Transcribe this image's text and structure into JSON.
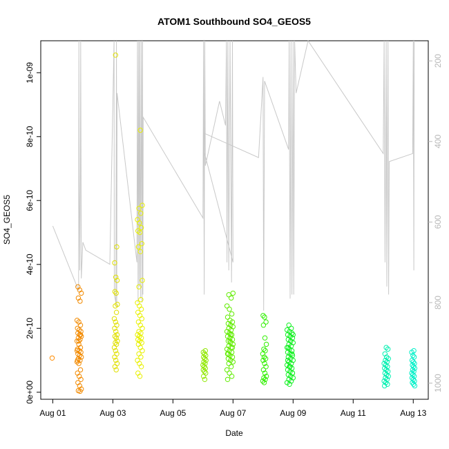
{
  "chart_data": {
    "type": "scatter",
    "title": "ATOM1 Southbound SO4_GEOS5",
    "xlabel": "Date",
    "ylabel": "SO4_GEOS5",
    "x_ticks": [
      "Aug 01",
      "Aug 03",
      "Aug 05",
      "Aug 07",
      "Aug 09",
      "Aug 11",
      "Aug 13"
    ],
    "x_tick_days": [
      1,
      3,
      5,
      7,
      9,
      11,
      13
    ],
    "xlim_days": [
      0.6,
      13.5
    ],
    "ylim": [
      -2.2e-11,
      1.1e-09
    ],
    "y_ticks": [
      0,
      2e-10,
      4e-10,
      6e-10,
      8e-10,
      1e-09
    ],
    "y_tick_labels": [
      "0e+00",
      "2e-10",
      "4e-10",
      "6e-10",
      "8e-10",
      "1e-09"
    ],
    "y2_label": "",
    "y2_reversed": true,
    "y2_lim": [
      1040,
      150
    ],
    "y2_ticks": [
      200,
      400,
      600,
      800,
      1000
    ],
    "y2_tick_labels": [
      "200",
      "400",
      "600",
      "800",
      "1000"
    ],
    "grid": false,
    "legend": "none",
    "point_colors": {
      "aug01": "#ff8c00",
      "aug02": "#f28a00",
      "aug03": "#e0e000",
      "aug04": "#e8f000",
      "aug06": "#90e800",
      "aug07": "#60ec00",
      "aug08": "#30f000",
      "aug09": "#10f020",
      "aug12": "#00f0b0",
      "aug13": "#00f0c8"
    },
    "pressure_line_color": "#c8c8c8",
    "scatter_groups": [
      {
        "day_center": 1.0,
        "spread": 0.02,
        "color_key": "aug01",
        "values": [
          1.07e-10
        ]
      },
      {
        "day_center": 1.88,
        "spread": 0.07,
        "color_key": "aug02",
        "values": [
          3.3e-10,
          3.2e-10,
          3.1e-10,
          2.95e-10,
          2.85e-10,
          2.25e-10,
          2.2e-10,
          2.1e-10,
          2e-10,
          1.95e-10,
          1.9e-10,
          1.85e-10,
          1.8e-10,
          1.75e-10,
          1.7e-10,
          1.65e-10,
          1.6e-10,
          1.5e-10,
          1.4e-10,
          1.35e-10,
          1.3e-10,
          1.25e-10,
          1.2e-10,
          1.15e-10,
          1.1e-10,
          1.05e-10,
          1e-10,
          9.5e-11,
          9e-11,
          7e-11,
          6e-11,
          5e-11,
          4e-11,
          3e-11,
          2e-11,
          1e-11,
          5e-12,
          3e-12,
          1.3e-10,
          1.6e-10,
          1.8e-10,
          1e-10
        ]
      },
      {
        "day_center": 3.1,
        "spread": 0.05,
        "color_key": "aug03",
        "values": [
          1.055e-09,
          4.55e-10,
          4.05e-10,
          3.6e-10,
          3.5e-10,
          3.15e-10,
          3.1e-10,
          2.75e-10,
          2.7e-10,
          2.5e-10,
          2.3e-10,
          2.2e-10,
          2.1e-10,
          2e-10,
          1.9e-10,
          1.8e-10,
          1.75e-10,
          1.7e-10,
          1.6e-10,
          1.55e-10,
          1.5e-10,
          1.4e-10,
          1.3e-10,
          1.2e-10,
          1.1e-10,
          1e-10,
          9e-11,
          8e-11,
          7e-11
        ]
      },
      {
        "day_center": 3.9,
        "spread": 0.08,
        "color_key": "aug04",
        "values": [
          8.2e-10,
          5.85e-10,
          5.75e-10,
          5.6e-10,
          5.4e-10,
          5.3e-10,
          5.15e-10,
          5.05e-10,
          5e-10,
          4.65e-10,
          4.55e-10,
          4.4e-10,
          3.5e-10,
          3.3e-10,
          2.9e-10,
          2.8e-10,
          2.7e-10,
          2.6e-10,
          2.5e-10,
          2.4e-10,
          2.3e-10,
          2.2e-10,
          2.1e-10,
          2e-10,
          1.9e-10,
          1.85e-10,
          1.8e-10,
          1.75e-10,
          1.7e-10,
          1.65e-10,
          1.6e-10,
          1.55e-10,
          1.5e-10,
          1.4e-10,
          1.3e-10,
          1.2e-10,
          1.1e-10,
          1e-10,
          9e-11,
          8e-11,
          6e-11,
          5e-11
        ]
      },
      {
        "day_center": 6.05,
        "spread": 0.05,
        "color_key": "aug06",
        "values": [
          1.3e-10,
          1.25e-10,
          1.2e-10,
          1.15e-10,
          1.1e-10,
          1.05e-10,
          1e-10,
          9.5e-11,
          9e-11,
          8.5e-11,
          8e-11,
          7.5e-11,
          7e-11,
          6.5e-11,
          6e-11,
          5e-11,
          4e-11
        ]
      },
      {
        "day_center": 6.9,
        "spread": 0.1,
        "color_key": "aug07",
        "values": [
          3.1e-10,
          3.05e-10,
          2.95e-10,
          2.7e-10,
          2.6e-10,
          2.45e-10,
          2.35e-10,
          2.25e-10,
          2.2e-10,
          2.15e-10,
          2.1e-10,
          2.05e-10,
          2e-10,
          1.95e-10,
          1.9e-10,
          1.85e-10,
          1.8e-10,
          1.75e-10,
          1.7e-10,
          1.65e-10,
          1.6e-10,
          1.55e-10,
          1.5e-10,
          1.45e-10,
          1.4e-10,
          1.35e-10,
          1.3e-10,
          1.25e-10,
          1.2e-10,
          1.15e-10,
          1.1e-10,
          1.05e-10,
          1e-10,
          9.5e-11,
          9e-11,
          8e-11,
          7e-11,
          6e-11,
          5e-11,
          4e-11,
          1.6e-10,
          1.4e-10,
          1.2e-10,
          1.8e-10
        ]
      },
      {
        "day_center": 8.05,
        "spread": 0.06,
        "color_key": "aug08",
        "values": [
          2.4e-10,
          2.35e-10,
          2.2e-10,
          2.1e-10,
          1.7e-10,
          1.5e-10,
          1.35e-10,
          1.3e-10,
          1.2e-10,
          1.1e-10,
          1.05e-10,
          1e-10,
          9e-11,
          8e-11,
          7e-11,
          6e-11,
          5e-11,
          4.5e-11,
          4e-11,
          3.5e-11,
          3e-11
        ]
      },
      {
        "day_center": 8.9,
        "spread": 0.1,
        "color_key": "aug09",
        "values": [
          2.1e-10,
          2e-10,
          1.95e-10,
          1.9e-10,
          1.85e-10,
          1.8e-10,
          1.75e-10,
          1.7e-10,
          1.65e-10,
          1.6e-10,
          1.55e-10,
          1.5e-10,
          1.45e-10,
          1.4e-10,
          1.35e-10,
          1.3e-10,
          1.25e-10,
          1.2e-10,
          1.15e-10,
          1.1e-10,
          1.05e-10,
          1e-10,
          9.5e-11,
          9e-11,
          8.5e-11,
          8e-11,
          7.5e-11,
          7e-11,
          6.5e-11,
          6e-11,
          5.5e-11,
          5e-11,
          4.5e-11,
          4e-11,
          3.5e-11,
          3e-11,
          2.5e-11,
          1.2e-10,
          1e-10,
          8e-11,
          6e-11,
          1.4e-10,
          1.6e-10,
          1.8e-10
        ]
      },
      {
        "day_center": 12.1,
        "spread": 0.07,
        "color_key": "aug12",
        "values": [
          1.4e-10,
          1.35e-10,
          1.2e-10,
          1.1e-10,
          1.05e-10,
          1e-10,
          9.5e-11,
          9e-11,
          8.5e-11,
          8e-11,
          7.5e-11,
          7e-11,
          6.5e-11,
          6e-11,
          5.5e-11,
          5e-11,
          4.5e-11,
          4e-11,
          3.5e-11,
          3e-11,
          2.5e-11,
          2e-11
        ]
      },
      {
        "day_center": 13.0,
        "spread": 0.05,
        "color_key": "aug13",
        "values": [
          1.3e-10,
          1.25e-10,
          1.15e-10,
          1.1e-10,
          1e-10,
          9.5e-11,
          9e-11,
          8.5e-11,
          8e-11,
          7.5e-11,
          7e-11,
          6.5e-11,
          6e-11,
          5.5e-11,
          5e-11,
          4.5e-11,
          4e-11,
          3.5e-11,
          3e-11,
          2.5e-11,
          2e-11
        ]
      }
    ],
    "pressure_path": [
      [
        1.0,
        610
      ],
      [
        1.86,
        770
      ],
      [
        1.87,
        150
      ],
      [
        1.88,
        500
      ],
      [
        1.9,
        720
      ],
      [
        1.92,
        470
      ],
      [
        1.93,
        150
      ],
      [
        1.94,
        460
      ],
      [
        1.95,
        740
      ],
      [
        2.0,
        650
      ],
      [
        2.1,
        670
      ],
      [
        2.9,
        705
      ],
      [
        3.04,
        150
      ],
      [
        3.05,
        780
      ],
      [
        3.1,
        800
      ],
      [
        3.12,
        150
      ],
      [
        3.13,
        810
      ],
      [
        3.14,
        280
      ],
      [
        3.8,
        700
      ],
      [
        3.82,
        150
      ],
      [
        3.84,
        800
      ],
      [
        3.86,
        150
      ],
      [
        3.88,
        760
      ],
      [
        3.9,
        150
      ],
      [
        3.92,
        790
      ],
      [
        3.95,
        150
      ],
      [
        3.97,
        800
      ],
      [
        3.99,
        150
      ],
      [
        4.0,
        780
      ],
      [
        4.01,
        340
      ],
      [
        6.0,
        590
      ],
      [
        6.02,
        150
      ],
      [
        6.04,
        780
      ],
      [
        6.06,
        150
      ],
      [
        6.08,
        460
      ],
      [
        6.55,
        300
      ],
      [
        6.75,
        360
      ],
      [
        6.78,
        150
      ],
      [
        6.8,
        700
      ],
      [
        6.83,
        150
      ],
      [
        6.86,
        720
      ],
      [
        6.9,
        150
      ],
      [
        6.95,
        750
      ],
      [
        6.98,
        150
      ],
      [
        7.0,
        700
      ],
      [
        6.02,
        420
      ],
      [
        6.05,
        380
      ],
      [
        7.85,
        440
      ],
      [
        8.0,
        240
      ],
      [
        8.02,
        820
      ],
      [
        8.05,
        250
      ],
      [
        8.85,
        420
      ],
      [
        8.87,
        150
      ],
      [
        8.9,
        790
      ],
      [
        8.93,
        150
      ],
      [
        8.96,
        780
      ],
      [
        9.0,
        150
      ],
      [
        9.02,
        780
      ],
      [
        9.05,
        150
      ],
      [
        9.1,
        280
      ],
      [
        9.5,
        150
      ],
      [
        12.0,
        430
      ],
      [
        12.03,
        150
      ],
      [
        12.06,
        700
      ],
      [
        12.1,
        150
      ],
      [
        12.12,
        760
      ],
      [
        12.16,
        150
      ],
      [
        12.18,
        780
      ],
      [
        12.2,
        450
      ],
      [
        12.98,
        430
      ],
      [
        13.0,
        150
      ],
      [
        13.02,
        720
      ],
      [
        13.03,
        150
      ]
    ]
  }
}
